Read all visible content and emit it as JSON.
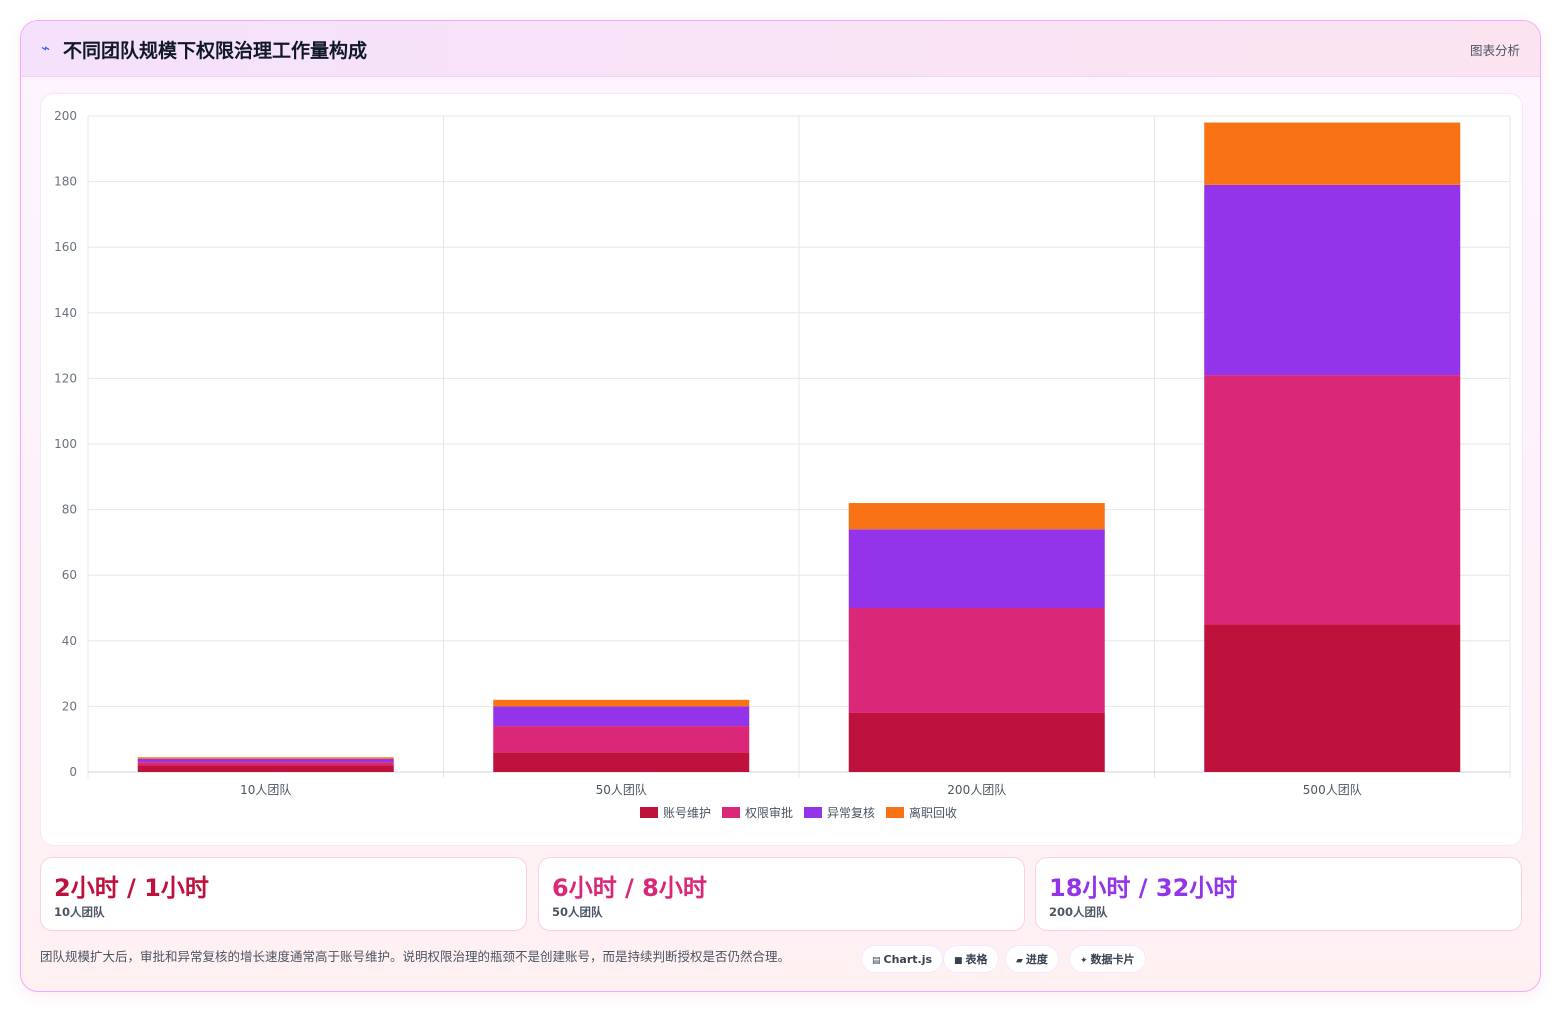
{
  "header": {
    "icon": "trend-icon",
    "title": "不同团队规模下权限治理工作量构成",
    "tag": "图表分析"
  },
  "chart_data": {
    "type": "bar",
    "stacked": true,
    "categories": [
      "10人团队",
      "50人团队",
      "200人团队",
      "500人团队"
    ],
    "series": [
      {
        "name": "账号维护",
        "color": "#be123c",
        "values": [
          2,
          6,
          18,
          45
        ]
      },
      {
        "name": "权限审批",
        "color": "#db2777",
        "values": [
          1,
          8,
          32,
          76
        ]
      },
      {
        "name": "异常复核",
        "color": "#9333ea",
        "values": [
          1,
          6,
          24,
          58
        ]
      },
      {
        "name": "离职回收",
        "color": "#f97316",
        "values": [
          0.5,
          2,
          8,
          19
        ]
      }
    ],
    "ylim": [
      0,
      200
    ],
    "yticks": [
      0,
      20,
      40,
      60,
      80,
      100,
      120,
      140,
      160,
      180,
      200
    ],
    "grid": true,
    "legend_position": "bottom"
  },
  "stats": [
    {
      "value": "2小时 / 1小时",
      "label": "10人团队",
      "color": "#be123c"
    },
    {
      "value": "6小时 / 8小时",
      "label": "50人团队",
      "color": "#db2777"
    },
    {
      "value": "18小时 / 32小时",
      "label": "200人团队",
      "color": "#9333ea"
    }
  ],
  "note": "团队规模扩大后，审批和异常复核的增长速度通常高于账号维护。说明权限治理的瓶颈不是创建账号，而是持续判断授权是否仍然合理。",
  "pills": [
    {
      "icon": "chart-icon",
      "glyph": "▤",
      "label": "Chart.js"
    },
    {
      "icon": "table-icon",
      "glyph": "■",
      "label": "表格"
    },
    {
      "icon": "progress-icon",
      "glyph": "▰",
      "label": "进度"
    },
    {
      "icon": "sparkle-icon",
      "glyph": "✦",
      "label": "数据卡片"
    }
  ]
}
